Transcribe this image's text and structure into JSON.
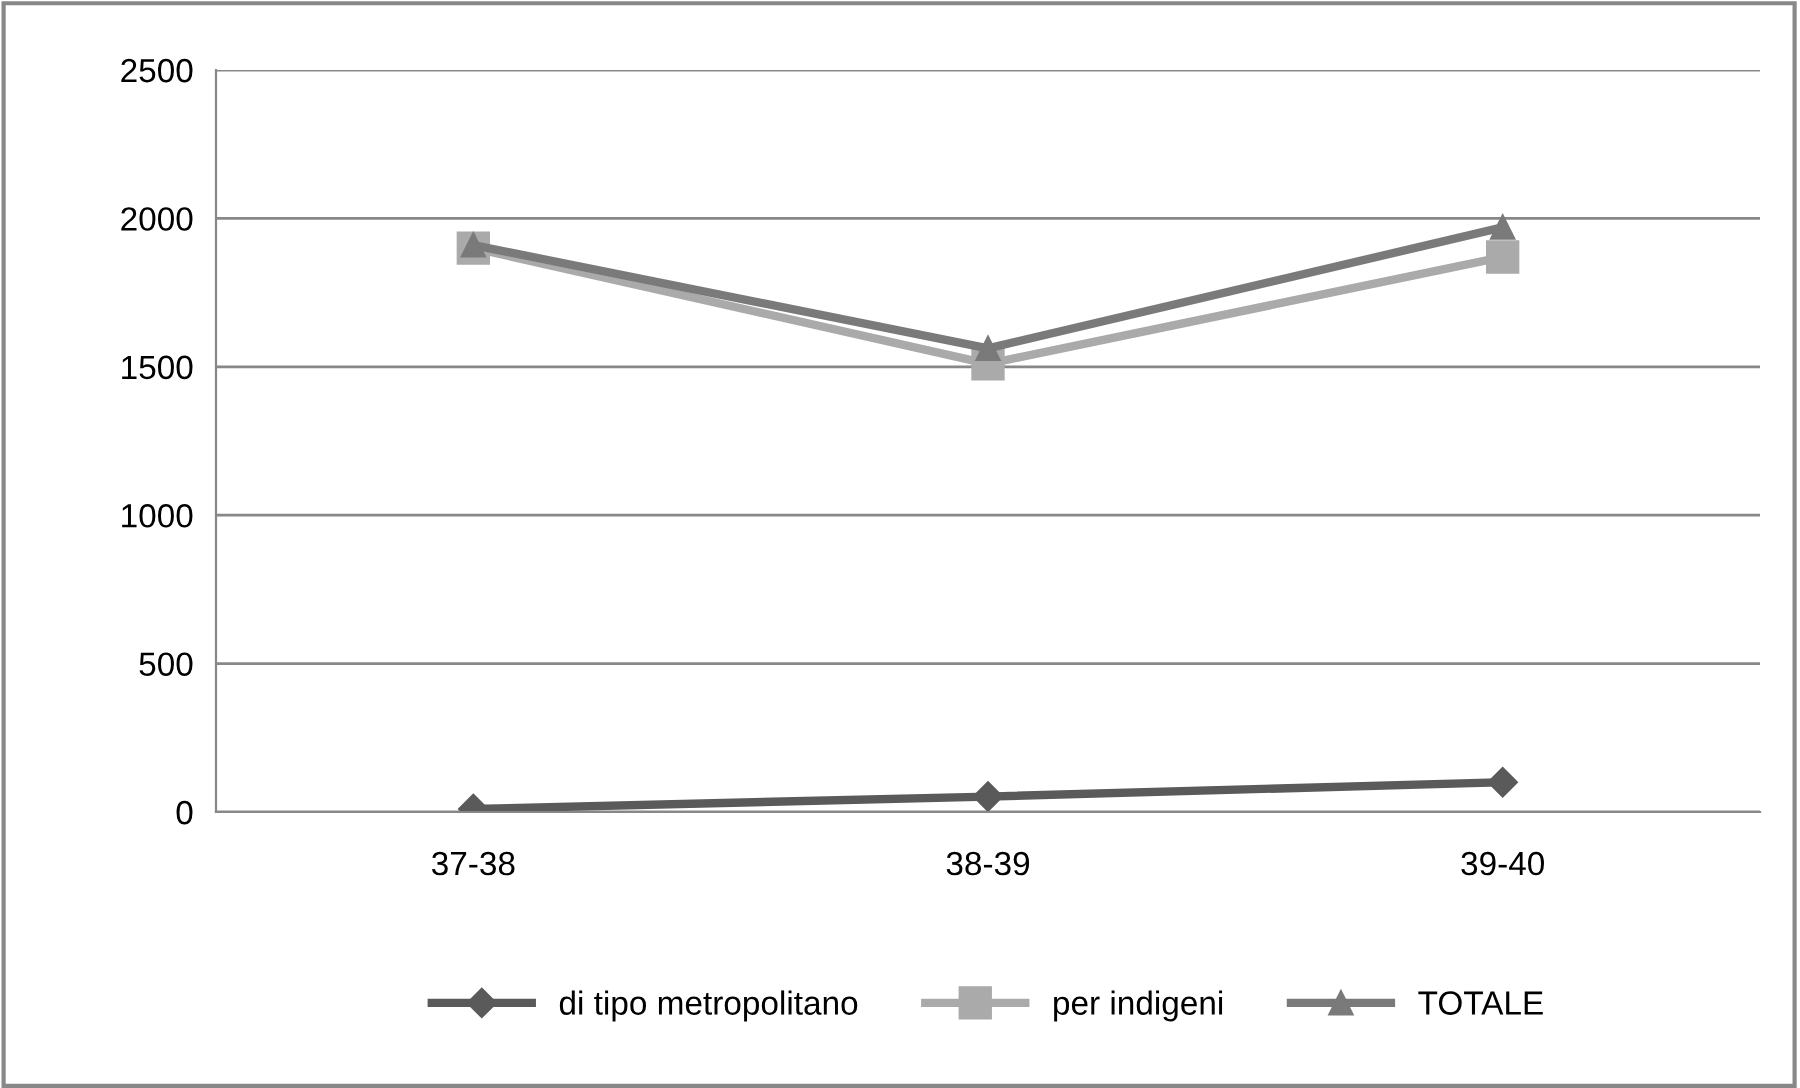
{
  "chart_data": {
    "type": "line",
    "categories": [
      "37-38",
      "38-39",
      "39-40"
    ],
    "series": [
      {
        "name": "di tipo metropolitano",
        "color": "#5a5a5a",
        "marker": "diamond",
        "values": [
          10,
          52,
          100
        ]
      },
      {
        "name": "per indigeni",
        "color": "#aaaaaa",
        "marker": "square",
        "values": [
          1900,
          1510,
          1870
        ]
      },
      {
        "name": "TOTALE",
        "color": "#7a7a7a",
        "marker": "triangle",
        "values": [
          1910,
          1562,
          1970
        ]
      }
    ],
    "ylim": [
      0,
      2500
    ],
    "yticks": [
      0,
      500,
      1000,
      1500,
      2000,
      2500
    ],
    "grid": "y",
    "legend": "bottom",
    "line_style": "solid"
  }
}
